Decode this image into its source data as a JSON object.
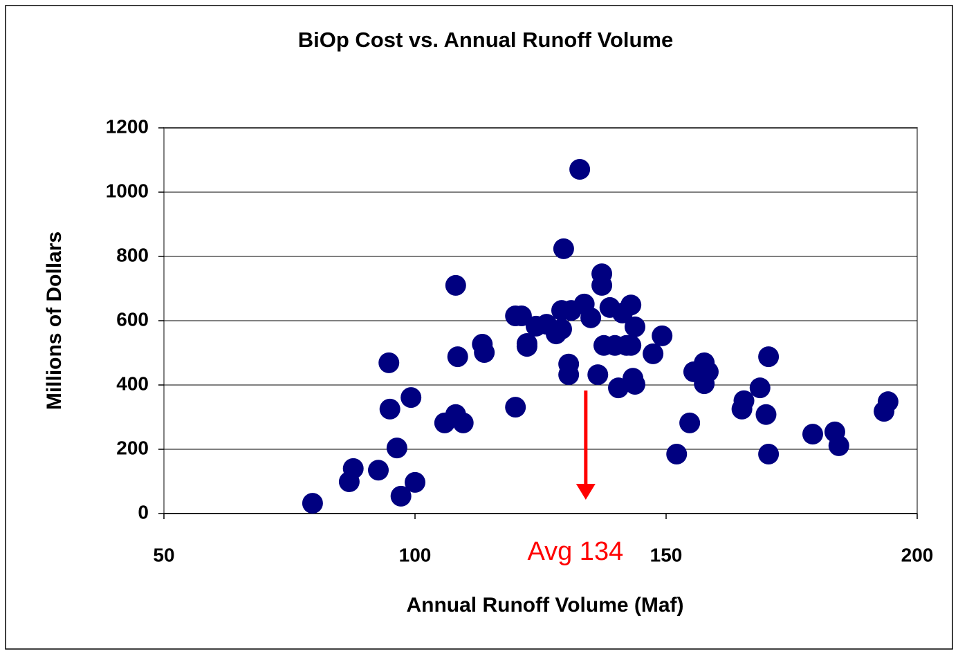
{
  "chart_data": {
    "type": "scatter",
    "title": "BiOp Cost vs. Annual Runoff Volume",
    "x_label": "Annual Runoff Volume (Maf)",
    "y_label": "Millions of Dollars",
    "color": "#000080",
    "x": [
      79.6,
      86.9,
      87.7,
      92.7,
      94.8,
      95.0,
      96.4,
      97.2,
      99.2,
      100.0,
      105.9,
      108.1,
      108.1,
      108.5,
      109.6,
      113.4,
      113.8,
      120.0,
      120.0,
      121.2,
      122.3,
      122.3,
      124.1,
      126.2,
      128.1,
      129.2,
      129.2,
      129.6,
      130.6,
      130.6,
      131.1,
      132.8,
      133.7,
      135.0,
      136.4,
      137.2,
      137.2,
      137.6,
      138.8,
      139.8,
      140.5,
      141.3,
      142.1,
      143.0,
      143.0,
      143.4,
      143.8,
      143.8,
      147.4,
      149.2,
      152.1,
      154.7,
      155.5,
      157.6,
      157.6,
      158.4,
      165.1,
      165.5,
      168.7,
      169.9,
      170.4,
      170.4,
      179.2,
      183.6,
      184.4,
      193.4,
      194.2
    ],
    "values": [
      32,
      99,
      140,
      135,
      469,
      325,
      204,
      54,
      361,
      97,
      282,
      710,
      308,
      488,
      282,
      527,
      501,
      331,
      615,
      615,
      529,
      520,
      583,
      589,
      559,
      574,
      632,
      824,
      465,
      432,
      632,
      1071,
      652,
      609,
      432,
      746,
      710,
      523,
      641,
      523,
      391,
      624,
      523,
      649,
      523,
      421,
      402,
      581,
      497,
      553,
      185,
      282,
      441,
      469,
      404,
      441,
      325,
      351,
      391,
      308,
      488,
      185,
      247,
      254,
      211,
      318,
      348
    ],
    "xlim": [
      50,
      200
    ],
    "xticks": [
      50,
      100,
      150,
      200
    ],
    "ylim": [
      0,
      1200
    ],
    "yticks": [
      0,
      200,
      400,
      600,
      800,
      1000,
      1200
    ],
    "grid": true,
    "annotation": {
      "text": "Avg 134",
      "x": 134,
      "color": "#ff0000"
    }
  }
}
